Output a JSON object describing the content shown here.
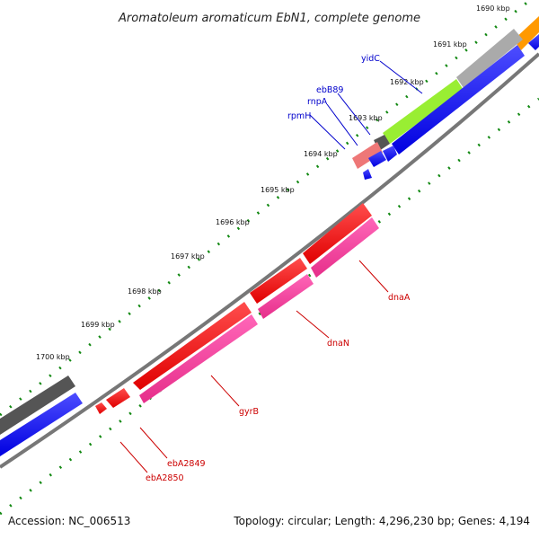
{
  "title": "Aromatoleum aromaticum EbN1, complete genome",
  "footer": {
    "accession": "Accession: NC_006513",
    "summary": "Topology: circular; Length: 4,296,230 bp; Genes: 4,194"
  },
  "ticks": [
    {
      "label": "1690 kbp"
    },
    {
      "label": "1691 kbp"
    },
    {
      "label": "1692 kbp"
    },
    {
      "label": "1693 kbp"
    },
    {
      "label": "1694 kbp"
    },
    {
      "label": "1695 kbp"
    },
    {
      "label": "1696 kbp"
    },
    {
      "label": "1697 kbp"
    },
    {
      "label": "1698 kbp"
    },
    {
      "label": "1699 kbp"
    },
    {
      "label": "1700 kbp"
    }
  ],
  "gene_labels": {
    "yidC": "yidC",
    "ebB89": "ebB89",
    "rnpA": "rnpA",
    "rpmH": "rpmH",
    "dnaA": "dnaA",
    "dnaN": "dnaN",
    "gyrB": "gyrB",
    "ebA2849": "ebA2849",
    "ebA2850": "ebA2850"
  },
  "colors": {
    "cds_forward": "#0000ff",
    "cds_reverse": "#ff0000",
    "gene_pink": "#ff3399",
    "gene_green": "#99ee33",
    "gene_gray": "#aaaaaa",
    "gene_dark": "#555555",
    "gene_orange": "#ff9900",
    "gene_salmon": "#ee7777",
    "tick": "#118811",
    "backbone": "#777777",
    "label_blue": "#0000cc",
    "label_red": "#cc0000"
  }
}
